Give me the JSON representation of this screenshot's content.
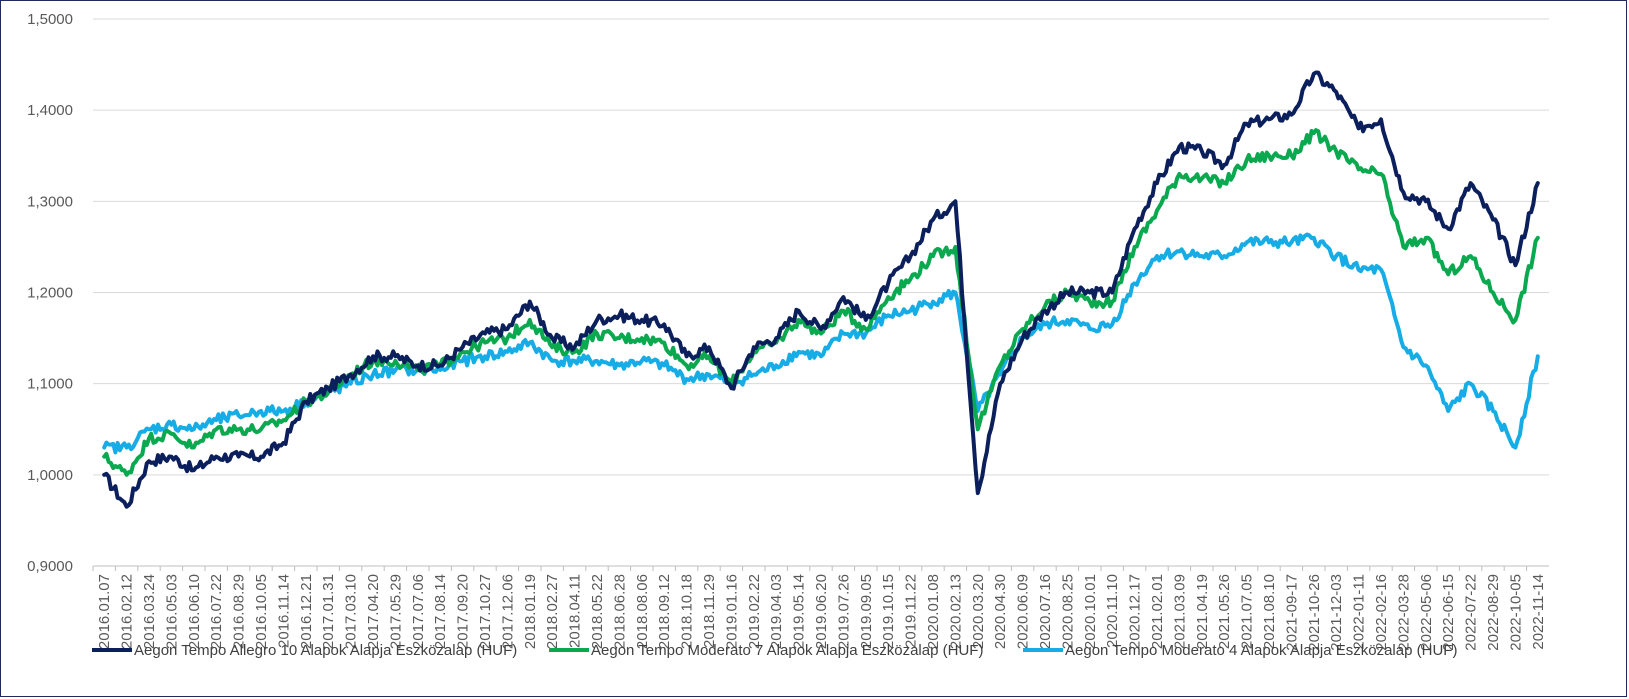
{
  "chart_data": {
    "type": "line",
    "title": "",
    "xlabel": "",
    "ylabel": "",
    "ylim": [
      0.9,
      1.5
    ],
    "yticks": [
      "0,9000",
      "1,0000",
      "1,1000",
      "1,2000",
      "1,3000",
      "1,4000",
      "1,5000"
    ],
    "grid": true,
    "legend_position": "bottom",
    "x_tick_labels": [
      "2016.01.07",
      "2016.02.12",
      "2016.03.24",
      "2016.05.03",
      "2016.06.10",
      "2016.07.22",
      "2016.08.29",
      "2016.10.05",
      "2016.11.14",
      "2016.12.21",
      "2017.01.31",
      "2017.03.10",
      "2017.04.20",
      "2017.05.29",
      "2017.07.06",
      "2017.08.14",
      "2017.09.20",
      "2017.10.27",
      "2017.12.06",
      "2018.01.19",
      "2018.02.27",
      "2018.04.11",
      "2018.05.22",
      "2018.06.28",
      "2018.08.06",
      "2018.09.12",
      "2018.10.18",
      "2018.11.29",
      "2019.01.16",
      "2019.02.22",
      "2019.04.03",
      "2019.05.14",
      "2019.06.20",
      "2019.07.26",
      "2019.09.05",
      "2019.10.15",
      "2019.11.22",
      "2020.01.08",
      "2020.02.13",
      "2020.03.20",
      "2020.04.30",
      "2020.06.09",
      "2020.07.16",
      "2020.08.25",
      "2020.10.01",
      "2020.11.10",
      "2020.12.17",
      "2021.02.01",
      "2021.03.09",
      "2021.04.19",
      "2021.05.26",
      "2021.07.05",
      "2021.08.10",
      "2021-09-17",
      "2021-10-26",
      "2021-12-03",
      "2022-01-11",
      "2022-02-16",
      "2022-03-28",
      "2022-05-06",
      "2022-06-15",
      "2022-07-22",
      "2022-08-29",
      "2022-10-05",
      "2022-11-14"
    ],
    "series": [
      {
        "name": "Aegon Tempo Allegro 10 Alapok Alapja Eszközalap (HUF)",
        "color": "#0b1f5c",
        "values": [
          1.0,
          0.965,
          1.015,
          1.02,
          1.005,
          1.02,
          1.02,
          1.02,
          1.035,
          1.08,
          1.095,
          1.11,
          1.13,
          1.13,
          1.12,
          1.12,
          1.14,
          1.155,
          1.16,
          1.19,
          1.15,
          1.14,
          1.17,
          1.175,
          1.17,
          1.165,
          1.13,
          1.14,
          1.095,
          1.14,
          1.15,
          1.18,
          1.16,
          1.195,
          1.17,
          1.21,
          1.24,
          1.28,
          1.3,
          0.98,
          1.1,
          1.15,
          1.18,
          1.2,
          1.2,
          1.2,
          1.27,
          1.32,
          1.36,
          1.355,
          1.34,
          1.385,
          1.39,
          1.395,
          1.44,
          1.42,
          1.38,
          1.39,
          1.31,
          1.3,
          1.27,
          1.32,
          1.28,
          1.23,
          1.32
        ]
      },
      {
        "name": "Aegon Tempo Moderato 7 Alapok Alapja Eszközalap (HUF)",
        "color": "#0aa84f",
        "values": [
          1.02,
          1.0,
          1.04,
          1.045,
          1.03,
          1.05,
          1.05,
          1.05,
          1.06,
          1.08,
          1.09,
          1.11,
          1.125,
          1.125,
          1.115,
          1.12,
          1.135,
          1.145,
          1.15,
          1.17,
          1.14,
          1.135,
          1.155,
          1.15,
          1.15,
          1.145,
          1.12,
          1.13,
          1.1,
          1.135,
          1.145,
          1.17,
          1.155,
          1.18,
          1.16,
          1.195,
          1.215,
          1.24,
          1.25,
          1.05,
          1.12,
          1.16,
          1.185,
          1.2,
          1.19,
          1.19,
          1.25,
          1.29,
          1.33,
          1.325,
          1.32,
          1.345,
          1.35,
          1.35,
          1.375,
          1.355,
          1.335,
          1.33,
          1.25,
          1.26,
          1.22,
          1.24,
          1.2,
          1.17,
          1.26
        ]
      },
      {
        "name": "Aegon Tempo Moderato 4 Alapok Alapja Eszközalap (HUF)",
        "color": "#16ace6",
        "values": [
          1.03,
          1.03,
          1.05,
          1.055,
          1.05,
          1.06,
          1.065,
          1.07,
          1.07,
          1.08,
          1.09,
          1.1,
          1.11,
          1.115,
          1.115,
          1.115,
          1.125,
          1.13,
          1.135,
          1.145,
          1.125,
          1.125,
          1.125,
          1.12,
          1.125,
          1.12,
          1.105,
          1.11,
          1.1,
          1.11,
          1.12,
          1.135,
          1.13,
          1.155,
          1.155,
          1.175,
          1.18,
          1.19,
          1.2,
          1.07,
          1.11,
          1.15,
          1.165,
          1.17,
          1.16,
          1.165,
          1.21,
          1.24,
          1.245,
          1.24,
          1.24,
          1.255,
          1.255,
          1.255,
          1.26,
          1.24,
          1.225,
          1.225,
          1.14,
          1.12,
          1.07,
          1.1,
          1.07,
          1.03,
          1.13
        ]
      }
    ]
  }
}
